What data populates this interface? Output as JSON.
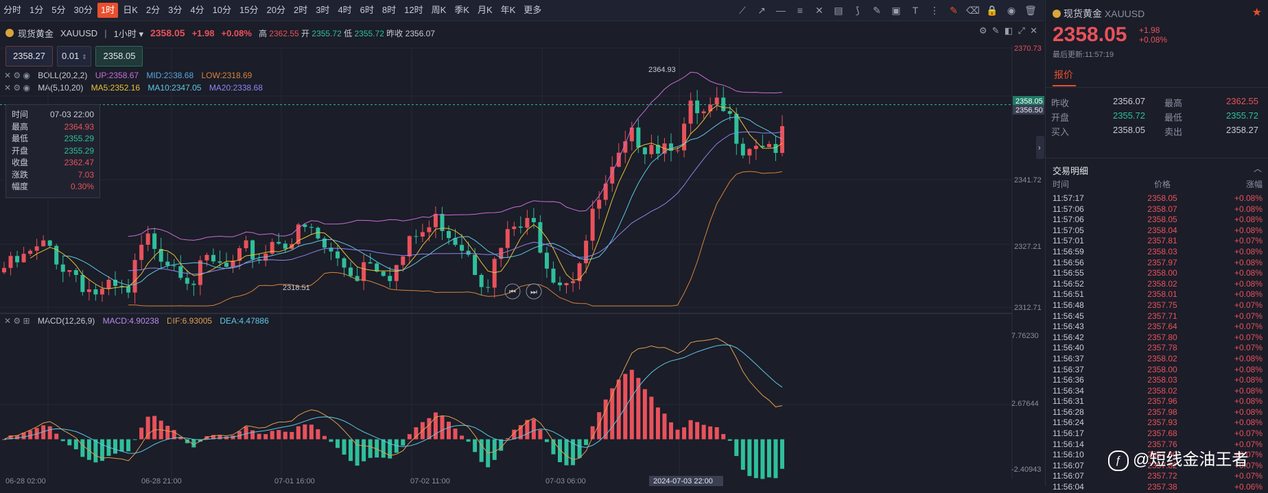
{
  "timeframes": [
    "分时",
    "1分",
    "5分",
    "30分",
    "1时",
    "日K",
    "2分",
    "3分",
    "4分",
    "10分",
    "15分",
    "20分",
    "2时",
    "3时",
    "4时",
    "6时",
    "8时",
    "12时",
    "周K",
    "季K",
    "月K",
    "年K",
    "更多"
  ],
  "active_timeframe": "1时",
  "quote": {
    "name": "现货黄金",
    "symbol": "XAUUSD",
    "period": "1小时",
    "price": "2358.05",
    "change": "+1.98",
    "pct": "+0.08%",
    "high_label": "高",
    "high": "2362.55",
    "open_label": "开",
    "open": "2355.72",
    "low_label": "低",
    "low": "2355.72",
    "prev_label": "昨收",
    "prev": "2356.07"
  },
  "inputs": {
    "sell": "2358.27",
    "qty": "0.01",
    "buy": "2358.05"
  },
  "boll": {
    "name": "BOLL(20,2,2)",
    "up": "UP:2358.67",
    "mid": "MID:2338.68",
    "low": "LOW:2318.69"
  },
  "ma": {
    "name": "MA(5,10,20)",
    "ma5": "MA5:2352.16",
    "ma10": "MA10:2347.05",
    "ma20": "MA20:2338.68"
  },
  "macd": {
    "name": "MACD(12,26,9)",
    "macd": "MACD:4.90238",
    "dif": "DIF:6.93005",
    "dea": "DEA:4.47886"
  },
  "tooltip": [
    [
      "时间",
      "07-03 22:00"
    ],
    [
      "最高",
      "2364.93"
    ],
    [
      "最低",
      "2355.29"
    ],
    [
      "开盘",
      "2355.29"
    ],
    [
      "收盘",
      "2362.47"
    ],
    [
      "涨跌",
      "7.03"
    ],
    [
      "幅度",
      "0.30%"
    ]
  ],
  "price_axis": [
    "2370.73",
    "2358.05",
    "2356.50",
    "2341.72",
    "2327.21",
    "2312.71"
  ],
  "macd_axis": [
    "7.76230",
    "2.67644",
    "-2.40943"
  ],
  "time_axis": [
    "06-28 02:00",
    "06-28 21:00",
    "07-01 16:00",
    "07-02 11:00",
    "07-03 06:00",
    "2024-07-03 22:00"
  ],
  "annot": {
    "high": "2364.93",
    "low": "2318.51"
  },
  "side": {
    "name": "现货黄金",
    "symbol": "XAUUSD",
    "price": "2358.05",
    "chg": "+1.98",
    "pct": "+0.08%",
    "updated": "最后更新:11:57:19",
    "tab": "报价",
    "q": [
      [
        "昨收",
        "2356.07",
        "最高",
        "2362.55"
      ],
      [
        "开盘",
        "2355.72",
        "最低",
        "2355.72"
      ],
      [
        "买入",
        "2358.05",
        "卖出",
        "2358.27"
      ]
    ],
    "trade_title": "交易明细",
    "cols": [
      "时间",
      "价格",
      "涨幅"
    ],
    "trades": [
      [
        "11:57:17",
        "2358.05",
        "+0.08%"
      ],
      [
        "11:57:06",
        "2358.07",
        "+0.08%"
      ],
      [
        "11:57:06",
        "2358.05",
        "+0.08%"
      ],
      [
        "11:57:05",
        "2358.04",
        "+0.08%"
      ],
      [
        "11:57:01",
        "2357.81",
        "+0.07%"
      ],
      [
        "11:56:59",
        "2358.03",
        "+0.08%"
      ],
      [
        "11:56:56",
        "2357.97",
        "+0.08%"
      ],
      [
        "11:56:55",
        "2358.00",
        "+0.08%"
      ],
      [
        "11:56:52",
        "2358.02",
        "+0.08%"
      ],
      [
        "11:56:51",
        "2358.01",
        "+0.08%"
      ],
      [
        "11:56:48",
        "2357.75",
        "+0.07%"
      ],
      [
        "11:56:45",
        "2357.71",
        "+0.07%"
      ],
      [
        "11:56:43",
        "2357.64",
        "+0.07%"
      ],
      [
        "11:56:42",
        "2357.80",
        "+0.07%"
      ],
      [
        "11:56:40",
        "2357.78",
        "+0.07%"
      ],
      [
        "11:56:37",
        "2358.02",
        "+0.08%"
      ],
      [
        "11:56:37",
        "2358.00",
        "+0.08%"
      ],
      [
        "11:56:36",
        "2358.03",
        "+0.08%"
      ],
      [
        "11:56:34",
        "2358.02",
        "+0.08%"
      ],
      [
        "11:56:31",
        "2357.96",
        "+0.08%"
      ],
      [
        "11:56:28",
        "2357.98",
        "+0.08%"
      ],
      [
        "11:56:24",
        "2357.93",
        "+0.08%"
      ],
      [
        "11:56:17",
        "2357.68",
        "+0.07%"
      ],
      [
        "11:56:14",
        "2357.76",
        "+0.07%"
      ],
      [
        "11:56:10",
        "2357.80",
        "+0.07%"
      ],
      [
        "11:56:07",
        "2357.82",
        "+0.07%"
      ],
      [
        "11:56:07",
        "2357.72",
        "+0.07%"
      ],
      [
        "11:56:04",
        "2357.38",
        "+0.06%"
      ]
    ]
  },
  "watermark": "@短线金油王者",
  "colors": {
    "up": "#e8525b",
    "down": "#2fbf9b",
    "accent": "#e8502e"
  }
}
